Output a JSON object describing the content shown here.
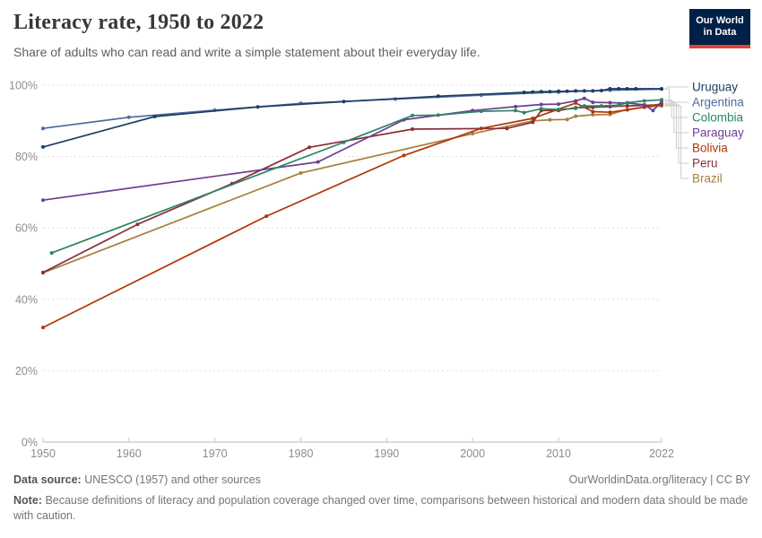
{
  "header": {
    "title": "Literacy rate, 1950 to 2022",
    "subtitle": "Share of adults who can read and write a simple statement about their everyday life.",
    "logo_line1": "Our World",
    "logo_line2": "in Data",
    "logo_bg_color": "#002147",
    "logo_accent_color": "#E04135"
  },
  "footer": {
    "source_label": "Data source:",
    "source_text": "UNESCO (1957) and other sources",
    "link_text": "OurWorldinData.org/literacy | CC BY",
    "note_label": "Note:",
    "note_text": "Because definitions of literacy and population coverage changed over time, comparisons between historical and modern data should be made with caution."
  },
  "chart_data": {
    "type": "line",
    "title": "Literacy rate, 1950 to 2022",
    "xlabel": "",
    "ylabel": "",
    "xlim": [
      1950,
      2022
    ],
    "ylim": [
      0,
      100
    ],
    "grid": "horizontal-dashed",
    "legend_position": "right",
    "x_ticks": [
      1950,
      1960,
      1970,
      1980,
      1990,
      2000,
      2010,
      2022
    ],
    "x_tick_labels": [
      "1950",
      "1960",
      "1970",
      "1980",
      "1990",
      "2000",
      "2010",
      "2022"
    ],
    "y_ticks": [
      0,
      20,
      40,
      60,
      80,
      100
    ],
    "y_tick_labels": [
      "0%",
      "20%",
      "40%",
      "60%",
      "80%",
      "100%"
    ],
    "series": [
      {
        "name": "Uruguay",
        "color": "#1D3D63",
        "points": [
          [
            1950,
            82.7
          ],
          [
            1963,
            91.2
          ],
          [
            1975,
            93.9
          ],
          [
            1985,
            95.4
          ],
          [
            1996,
            96.9
          ],
          [
            2006,
            98.0
          ],
          [
            2007,
            98.1
          ],
          [
            2008,
            98.2
          ],
          [
            2009,
            98.2
          ],
          [
            2010,
            98.3
          ],
          [
            2011,
            98.3
          ],
          [
            2012,
            98.4
          ],
          [
            2013,
            98.4
          ],
          [
            2014,
            98.4
          ],
          [
            2015,
            98.5
          ],
          [
            2016,
            99.0
          ],
          [
            2017,
            99.0
          ],
          [
            2018,
            99.0
          ],
          [
            2019,
            99.0
          ],
          [
            2022,
            99.0
          ]
        ]
      },
      {
        "name": "Argentina",
        "color": "#4C6A9C",
        "points": [
          [
            1950,
            87.9
          ],
          [
            1960,
            91.0
          ],
          [
            1970,
            93.0
          ],
          [
            1980,
            94.9
          ],
          [
            1991,
            96.1
          ],
          [
            2001,
            97.2
          ],
          [
            2010,
            98.1
          ],
          [
            2016,
            98.6
          ],
          [
            2022,
            98.9
          ]
        ]
      },
      {
        "name": "Colombia",
        "color": "#2C8465",
        "points": [
          [
            1951,
            53.0
          ],
          [
            1985,
            84.0
          ],
          [
            1993,
            91.5
          ],
          [
            1996,
            91.6
          ],
          [
            2001,
            92.7
          ],
          [
            2005,
            92.9
          ],
          [
            2006,
            92.3
          ],
          [
            2008,
            93.4
          ],
          [
            2010,
            93.2
          ],
          [
            2012,
            93.5
          ],
          [
            2013,
            94.2
          ],
          [
            2015,
            94.2
          ],
          [
            2017,
            94.4
          ],
          [
            2018,
            95.1
          ],
          [
            2020,
            95.6
          ],
          [
            2022,
            95.9
          ]
        ]
      },
      {
        "name": "Paraguay",
        "color": "#6D3E91",
        "points": [
          [
            1950,
            67.8
          ],
          [
            1982,
            78.5
          ],
          [
            1992,
            90.3
          ],
          [
            2000,
            92.9
          ],
          [
            2005,
            94.0
          ],
          [
            2008,
            94.6
          ],
          [
            2010,
            94.7
          ],
          [
            2012,
            95.6
          ],
          [
            2013,
            96.3
          ],
          [
            2014,
            95.2
          ],
          [
            2016,
            95.1
          ],
          [
            2018,
            95.0
          ],
          [
            2020,
            94.5
          ],
          [
            2021,
            92.9
          ],
          [
            2022,
            95.4
          ]
        ]
      },
      {
        "name": "Bolivia",
        "color": "#B13507",
        "points": [
          [
            1950,
            32.1
          ],
          [
            1976,
            63.3
          ],
          [
            1992,
            80.3
          ],
          [
            2001,
            87.9
          ],
          [
            2007,
            90.7
          ],
          [
            2012,
            95.0
          ],
          [
            2014,
            92.6
          ],
          [
            2016,
            92.4
          ],
          [
            2018,
            93.1
          ],
          [
            2020,
            93.9
          ],
          [
            2022,
            94.8
          ]
        ]
      },
      {
        "name": "Peru",
        "color": "#883039",
        "points": [
          [
            1950,
            47.5
          ],
          [
            1961,
            61.0
          ],
          [
            1972,
            72.4
          ],
          [
            1981,
            82.6
          ],
          [
            1993,
            87.7
          ],
          [
            2004,
            87.9
          ],
          [
            2007,
            89.6
          ],
          [
            2008,
            92.9
          ],
          [
            2010,
            92.9
          ],
          [
            2012,
            93.7
          ],
          [
            2014,
            93.8
          ],
          [
            2016,
            94.0
          ],
          [
            2018,
            94.2
          ],
          [
            2022,
            94.5
          ]
        ]
      },
      {
        "name": "Brazil",
        "color": "#A87E3C",
        "points": [
          [
            1950,
            47.4
          ],
          [
            1980,
            75.4
          ],
          [
            2000,
            86.4
          ],
          [
            2007,
            90.0
          ],
          [
            2009,
            90.3
          ],
          [
            2011,
            90.4
          ],
          [
            2012,
            91.3
          ],
          [
            2014,
            91.7
          ],
          [
            2016,
            91.8
          ],
          [
            2018,
            93.2
          ],
          [
            2020,
            93.8
          ],
          [
            2022,
            94.2
          ]
        ]
      }
    ]
  }
}
